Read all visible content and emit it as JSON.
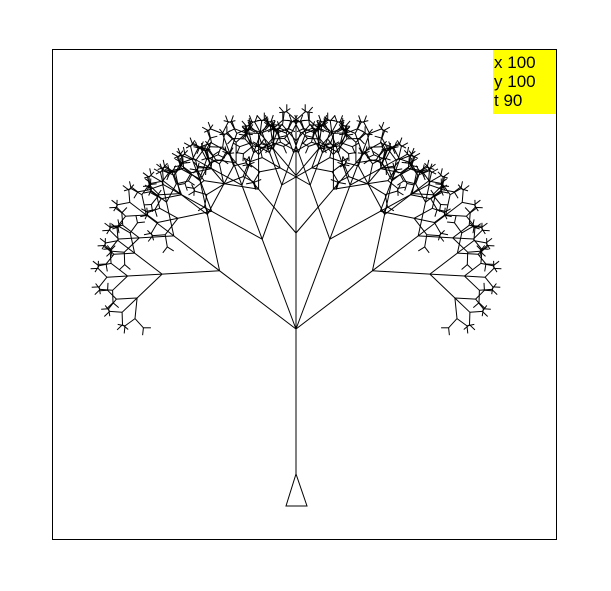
{
  "turtle_status": {
    "x_label": "x",
    "x_value": "100",
    "y_label": "y",
    "y_value": "100",
    "t_label": "t",
    "t_value": "90"
  },
  "colors": {
    "status_background": "#ffff00",
    "stroke": "#000000",
    "canvas_background": "#ffffff"
  },
  "icons": {
    "turtle": "turtle-triangle-icon"
  },
  "tree": {
    "depth": 7,
    "branch_angle_degrees": 30,
    "length_ratio": 0.6
  }
}
